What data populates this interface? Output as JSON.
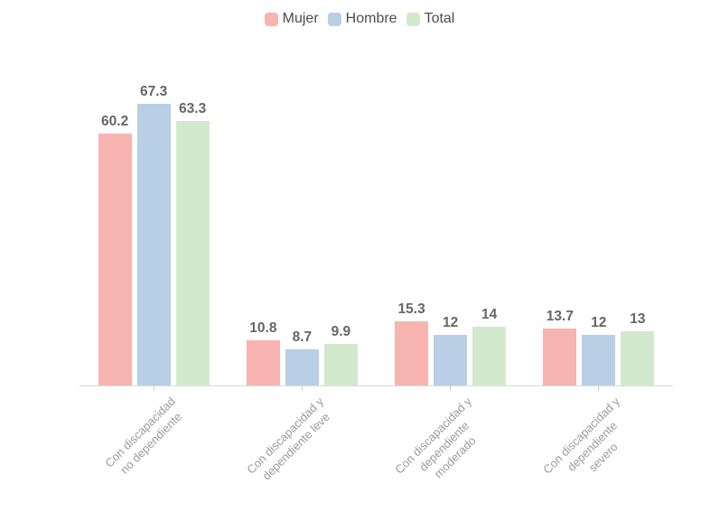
{
  "chart_data": {
    "type": "bar",
    "title": "",
    "xlabel": "",
    "ylabel": "",
    "ylim": [
      0,
      76
    ],
    "grid": false,
    "legend_position": "top",
    "categories": [
      {
        "label": "Con discapacidad no dependiente",
        "lines": [
          "Con discapacidad",
          "no dependiente"
        ]
      },
      {
        "label": "Con discapacidad y dependiente leve",
        "lines": [
          "Con discapacidad y",
          "dependiente leve"
        ]
      },
      {
        "label": "Con discapacidad y dependiente moderado",
        "lines": [
          "Con discapacidad y",
          "dependiente",
          "moderado"
        ]
      },
      {
        "label": "Con discapacidad y dependiente severo",
        "lines": [
          "Con discapacidad y",
          "dependiente",
          "severo"
        ]
      }
    ],
    "series": [
      {
        "name": "Mujer",
        "color": "#f8b4b0",
        "values": [
          60.2,
          10.8,
          15.3,
          13.7
        ],
        "labels": [
          "60.2",
          "10.8",
          "15.3",
          "13.7"
        ]
      },
      {
        "name": "Hombre",
        "color": "#b8cfe5",
        "values": [
          67.3,
          8.7,
          12,
          12
        ],
        "labels": [
          "67.3",
          "8.7",
          "12",
          "12"
        ]
      },
      {
        "name": "Total",
        "color": "#d3e9cd",
        "values": [
          63.3,
          9.9,
          14,
          13
        ],
        "labels": [
          "63.3",
          "9.9",
          "14",
          "13"
        ]
      }
    ],
    "colors": {
      "value_label": "#666666",
      "axis_label": "#9b9b9b",
      "legend_text": "#4d4d4d",
      "axis_line": "#d9d9d9"
    }
  }
}
